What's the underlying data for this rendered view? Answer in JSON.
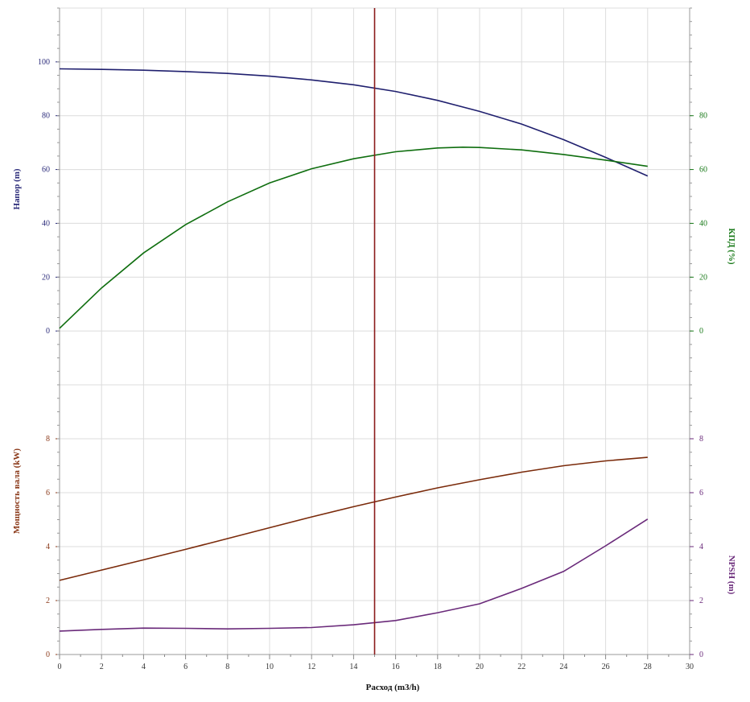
{
  "chart_data": {
    "type": "line",
    "title": "",
    "xlabel": "Расход (m3/h)",
    "xlim": [
      0,
      30
    ],
    "x_ticks": [
      0,
      2,
      4,
      6,
      8,
      10,
      12,
      14,
      16,
      18,
      20,
      22,
      24,
      26,
      28,
      30
    ],
    "grid": true,
    "operating_point_x": 15,
    "operating_line_color": "#8b1a1a",
    "panels": [
      {
        "name": "top",
        "left_axis": {
          "label": "Напор (m)",
          "color": "#2b2b7a",
          "ylim": [
            -20,
            120
          ],
          "ticks": [
            0,
            20,
            40,
            60,
            80,
            100
          ]
        },
        "right_axis": {
          "label": "КПД (%)",
          "color": "#1a7a1a",
          "ylim": [
            -20,
            120
          ],
          "ticks": [
            0,
            20,
            40,
            60,
            80
          ]
        },
        "series": [
          {
            "axis": "left",
            "color": "#1f1f6e",
            "x": [
              0,
              2,
              4,
              6,
              8,
              10,
              12,
              14,
              16,
              18,
              20,
              22,
              24,
              26,
              28
            ],
            "values": [
              97.4,
              97.2,
              96.9,
              96.4,
              95.7,
              94.7,
              93.3,
              91.5,
              89.0,
              85.7,
              81.6,
              76.9,
              71.1,
              64.5,
              57.6
            ]
          },
          {
            "axis": "right",
            "color": "#0f6e0f",
            "x": [
              0,
              2,
              4,
              6,
              8,
              10,
              12,
              14,
              16,
              18,
              19.2,
              20,
              22,
              24,
              26,
              28
            ],
            "values": [
              1.0,
              16.0,
              29.0,
              39.5,
              48.0,
              55.0,
              60.3,
              64.0,
              66.6,
              68.0,
              68.3,
              68.2,
              67.3,
              65.6,
              63.5,
              61.2
            ]
          }
        ]
      },
      {
        "name": "bottom",
        "left_axis": {
          "label": "Мощность вала (kW)",
          "color": "#8b3a1a",
          "ylim": [
            0,
            10
          ],
          "ticks": [
            0,
            2,
            4,
            6,
            8
          ]
        },
        "right_axis": {
          "label": "NPSH (m)",
          "color": "#6a2a7a",
          "ylim": [
            0,
            10
          ],
          "ticks": [
            0,
            2,
            4,
            6,
            8
          ]
        },
        "series": [
          {
            "axis": "left",
            "color": "#7a2a0a",
            "x": [
              0,
              2,
              4,
              6,
              8,
              10,
              12,
              14,
              16,
              18,
              20,
              22,
              24,
              26,
              28
            ],
            "values": [
              2.75,
              3.13,
              3.51,
              3.9,
              4.3,
              4.7,
              5.1,
              5.48,
              5.84,
              6.18,
              6.48,
              6.76,
              7.0,
              7.18,
              7.31
            ]
          },
          {
            "axis": "right",
            "color": "#6a2a7a",
            "x": [
              0,
              2,
              4,
              6,
              8,
              10,
              12,
              14,
              16,
              18,
              20,
              22,
              24,
              26,
              28
            ],
            "values": [
              0.87,
              0.93,
              0.98,
              0.97,
              0.95,
              0.97,
              1.0,
              1.1,
              1.26,
              1.55,
              1.88,
              2.45,
              3.08,
              4.03,
              5.02
            ]
          }
        ]
      }
    ]
  }
}
